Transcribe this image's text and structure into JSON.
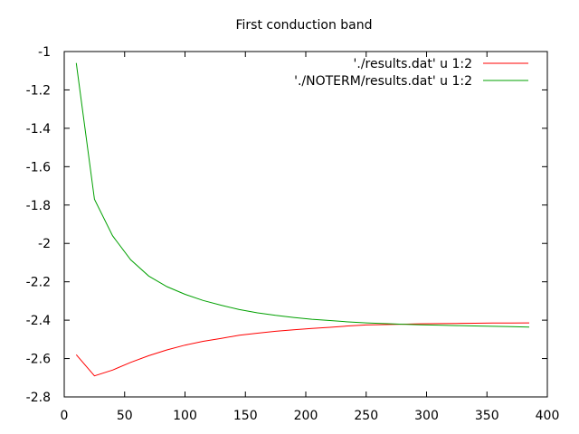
{
  "chart_data": {
    "type": "line",
    "title": "First conduction band",
    "xlabel": "",
    "ylabel": "",
    "xlim": [
      0,
      400
    ],
    "ylim": [
      -2.8,
      -1
    ],
    "xticks": [
      0,
      50,
      100,
      150,
      200,
      250,
      300,
      350,
      400
    ],
    "yticks": [
      -2.8,
      -2.6,
      -2.4,
      -2.2,
      -2,
      -1.8,
      -1.6,
      -1.4,
      -1.2,
      -1
    ],
    "grid": false,
    "legend_position": "top-right",
    "series": [
      {
        "name": "'./results.dat' u 1:2",
        "color": "#ff0000",
        "points": [
          [
            10,
            -2.58
          ],
          [
            25,
            -2.69
          ],
          [
            40,
            -2.66
          ],
          [
            55,
            -2.62
          ],
          [
            70,
            -2.585
          ],
          [
            85,
            -2.555
          ],
          [
            100,
            -2.53
          ],
          [
            115,
            -2.51
          ],
          [
            130,
            -2.495
          ],
          [
            145,
            -2.478
          ],
          [
            160,
            -2.468
          ],
          [
            175,
            -2.458
          ],
          [
            190,
            -2.45
          ],
          [
            205,
            -2.443
          ],
          [
            220,
            -2.437
          ],
          [
            235,
            -2.43
          ],
          [
            250,
            -2.425
          ],
          [
            265,
            -2.423
          ],
          [
            280,
            -2.421
          ],
          [
            295,
            -2.419
          ],
          [
            310,
            -2.418
          ],
          [
            325,
            -2.417
          ],
          [
            340,
            -2.416
          ],
          [
            355,
            -2.415
          ],
          [
            370,
            -2.415
          ],
          [
            385,
            -2.414
          ]
        ]
      },
      {
        "name": "'./NOTERM/results.dat' u 1:2",
        "color": "#00a000",
        "points": [
          [
            10,
            -1.06
          ],
          [
            25,
            -1.77
          ],
          [
            40,
            -1.96
          ],
          [
            55,
            -2.085
          ],
          [
            70,
            -2.17
          ],
          [
            85,
            -2.225
          ],
          [
            100,
            -2.265
          ],
          [
            115,
            -2.297
          ],
          [
            130,
            -2.322
          ],
          [
            145,
            -2.345
          ],
          [
            160,
            -2.362
          ],
          [
            175,
            -2.375
          ],
          [
            190,
            -2.386
          ],
          [
            205,
            -2.395
          ],
          [
            220,
            -2.402
          ],
          [
            235,
            -2.409
          ],
          [
            250,
            -2.414
          ],
          [
            265,
            -2.418
          ],
          [
            280,
            -2.421
          ],
          [
            295,
            -2.424
          ],
          [
            310,
            -2.426
          ],
          [
            325,
            -2.428
          ],
          [
            340,
            -2.43
          ],
          [
            355,
            -2.432
          ],
          [
            370,
            -2.434
          ],
          [
            385,
            -2.436
          ]
        ]
      }
    ]
  }
}
